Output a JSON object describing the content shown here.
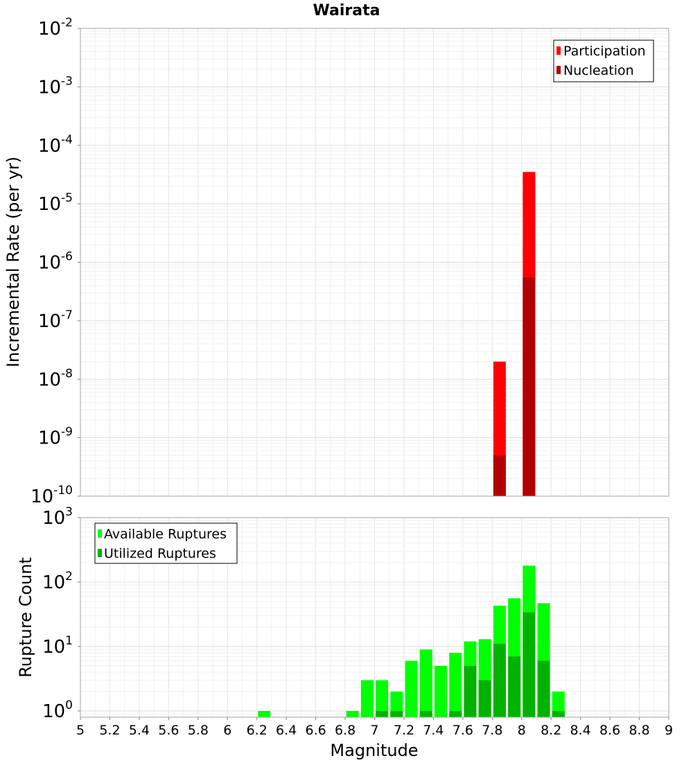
{
  "chart_data": [
    {
      "type": "bar",
      "title": "Wairata",
      "ylabel": "Incremental Rate (per yr)",
      "yscale": "log",
      "ylim": [
        1e-10,
        0.01
      ],
      "xlim": [
        5,
        9
      ],
      "grid": true,
      "legend_position": "top-right",
      "y_tick_labels": [
        {
          "value": 1e-10,
          "base": "10",
          "exp": "-10"
        },
        {
          "value": 1e-09,
          "base": "10",
          "exp": "-9"
        },
        {
          "value": 1e-08,
          "base": "10",
          "exp": "-8"
        },
        {
          "value": 1e-07,
          "base": "10",
          "exp": "-7"
        },
        {
          "value": 1e-06,
          "base": "10",
          "exp": "-6"
        },
        {
          "value": 1e-05,
          "base": "10",
          "exp": "-5"
        },
        {
          "value": 0.0001,
          "base": "10",
          "exp": "-4"
        },
        {
          "value": 0.001,
          "base": "10",
          "exp": "-3"
        },
        {
          "value": 0.01,
          "base": "10",
          "exp": "-2"
        }
      ],
      "series": [
        {
          "name": "Participation",
          "color": "#ff0000",
          "x": [
            7.85,
            8.05
          ],
          "values": [
            2e-08,
            3.5e-05
          ]
        },
        {
          "name": "Nucleation",
          "color": "#b20000",
          "x": [
            7.85,
            8.05
          ],
          "values": [
            5e-10,
            5.5e-07
          ]
        }
      ]
    },
    {
      "type": "bar",
      "xlabel": "Magnitude",
      "ylabel": "Rupture Count",
      "yscale": "log",
      "ylim": [
        0.8,
        1000
      ],
      "xlim": [
        5,
        9
      ],
      "grid": true,
      "legend_position": "top-left",
      "x_ticks": [
        "5",
        "5.2",
        "5.4",
        "5.6",
        "5.8",
        "6",
        "6.2",
        "6.4",
        "6.6",
        "6.8",
        "7",
        "7.2",
        "7.4",
        "7.6",
        "7.8",
        "8",
        "8.2",
        "8.4",
        "8.6",
        "8.8",
        "9"
      ],
      "y_tick_labels": [
        {
          "value": 1,
          "base": "10",
          "exp": "0"
        },
        {
          "value": 10,
          "base": "10",
          "exp": "1"
        },
        {
          "value": 100,
          "base": "10",
          "exp": "2"
        },
        {
          "value": 1000,
          "base": "10",
          "exp": "3"
        }
      ],
      "series": [
        {
          "name": "Available Ruptures",
          "color": "#00ff00",
          "x": [
            6.25,
            6.85,
            6.95,
            7.05,
            7.15,
            7.25,
            7.35,
            7.45,
            7.55,
            7.65,
            7.75,
            7.85,
            7.95,
            8.05,
            8.15,
            8.25
          ],
          "values": [
            1,
            1,
            3,
            3,
            2,
            6,
            9,
            5,
            8,
            12,
            13,
            43,
            56,
            180,
            47,
            2
          ]
        },
        {
          "name": "Utilized Ruptures",
          "color": "#00b200",
          "x": [
            7.05,
            7.15,
            7.35,
            7.55,
            7.65,
            7.75,
            7.85,
            7.95,
            8.05,
            8.15,
            8.25
          ],
          "values": [
            1,
            1,
            1,
            1,
            5,
            3,
            11,
            7,
            34,
            6,
            1
          ]
        }
      ]
    }
  ]
}
